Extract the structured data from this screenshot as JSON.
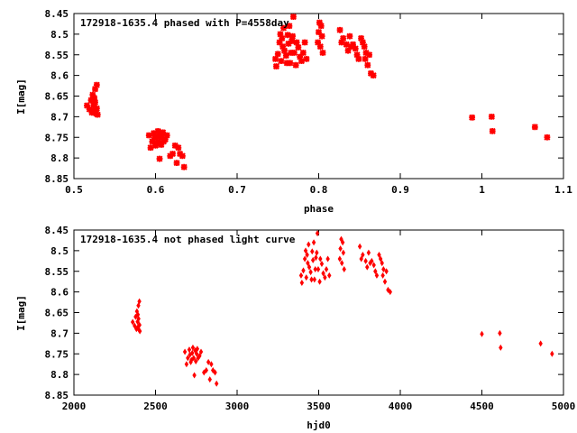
{
  "chart_data": [
    {
      "type": "scatter",
      "title": "172918-1635.4 phased with P=4558day",
      "xlabel": "phase",
      "ylabel": "I[mag]",
      "xlim": [
        0.5,
        1.1
      ],
      "ylim": [
        8.85,
        8.45
      ],
      "y_inverted": true,
      "grid": false,
      "marker_color": "#ff0000",
      "marker": "cross-bold",
      "x_ticks": [
        "0.5",
        "0.6",
        "0.7",
        "0.8",
        "0.9",
        "1",
        "1.1"
      ],
      "y_ticks": [
        "8.45",
        "8.5",
        "8.55",
        "8.6",
        "8.65",
        "8.7",
        "8.75",
        "8.8",
        "8.85"
      ],
      "points": [
        [
          0.516,
          8.673
        ],
        [
          0.519,
          8.682
        ],
        [
          0.521,
          8.66
        ],
        [
          0.522,
          8.69
        ],
        [
          0.523,
          8.647
        ],
        [
          0.524,
          8.672
        ],
        [
          0.525,
          8.655
        ],
        [
          0.525,
          8.685
        ],
        [
          0.526,
          8.633
        ],
        [
          0.526,
          8.665
        ],
        [
          0.527,
          8.692
        ],
        [
          0.528,
          8.623
        ],
        [
          0.528,
          8.68
        ],
        [
          0.529,
          8.695
        ],
        [
          0.592,
          8.745
        ],
        [
          0.594,
          8.775
        ],
        [
          0.596,
          8.76
        ],
        [
          0.598,
          8.74
        ],
        [
          0.599,
          8.752
        ],
        [
          0.6,
          8.77
        ],
        [
          0.601,
          8.765
        ],
        [
          0.602,
          8.748
        ],
        [
          0.603,
          8.735
        ],
        [
          0.604,
          8.76
        ],
        [
          0.605,
          8.802
        ],
        [
          0.606,
          8.742
        ],
        [
          0.607,
          8.768
        ],
        [
          0.608,
          8.75
        ],
        [
          0.609,
          8.738
        ],
        [
          0.61,
          8.76
        ],
        [
          0.612,
          8.755
        ],
        [
          0.614,
          8.745
        ],
        [
          0.618,
          8.795
        ],
        [
          0.621,
          8.79
        ],
        [
          0.624,
          8.77
        ],
        [
          0.626,
          8.812
        ],
        [
          0.628,
          8.775
        ],
        [
          0.63,
          8.79
        ],
        [
          0.633,
          8.795
        ],
        [
          0.635,
          8.822
        ],
        [
          0.747,
          8.56
        ],
        [
          0.748,
          8.578
        ],
        [
          0.75,
          8.548
        ],
        [
          0.752,
          8.52
        ],
        [
          0.753,
          8.5
        ],
        [
          0.754,
          8.565
        ],
        [
          0.755,
          8.51
        ],
        [
          0.756,
          8.53
        ],
        [
          0.757,
          8.485
        ],
        [
          0.758,
          8.54
        ],
        [
          0.76,
          8.552
        ],
        [
          0.761,
          8.57
        ],
        [
          0.762,
          8.502
        ],
        [
          0.763,
          8.523
        ],
        [
          0.764,
          8.48
        ],
        [
          0.765,
          8.57
        ],
        [
          0.766,
          8.545
        ],
        [
          0.767,
          8.517
        ],
        [
          0.768,
          8.505
        ],
        [
          0.769,
          8.458
        ],
        [
          0.77,
          8.545
        ],
        [
          0.772,
          8.575
        ],
        [
          0.773,
          8.52
        ],
        [
          0.775,
          8.532
        ],
        [
          0.777,
          8.555
        ],
        [
          0.779,
          8.565
        ],
        [
          0.781,
          8.545
        ],
        [
          0.783,
          8.52
        ],
        [
          0.785,
          8.56
        ],
        [
          0.799,
          8.52
        ],
        [
          0.8,
          8.495
        ],
        [
          0.801,
          8.472
        ],
        [
          0.802,
          8.53
        ],
        [
          0.803,
          8.48
        ],
        [
          0.804,
          8.505
        ],
        [
          0.805,
          8.545
        ],
        [
          0.826,
          8.49
        ],
        [
          0.828,
          8.52
        ],
        [
          0.83,
          8.51
        ],
        [
          0.834,
          8.525
        ],
        [
          0.836,
          8.54
        ],
        [
          0.838,
          8.505
        ],
        [
          0.84,
          8.53
        ],
        [
          0.842,
          8.525
        ],
        [
          0.845,
          8.535
        ],
        [
          0.847,
          8.55
        ],
        [
          0.849,
          8.56
        ],
        [
          0.852,
          8.51
        ],
        [
          0.854,
          8.52
        ],
        [
          0.856,
          8.53
        ],
        [
          0.857,
          8.56
        ],
        [
          0.858,
          8.545
        ],
        [
          0.86,
          8.575
        ],
        [
          0.862,
          8.55
        ],
        [
          0.864,
          8.595
        ],
        [
          0.867,
          8.6
        ],
        [
          0.988,
          8.702
        ],
        [
          1.012,
          8.7
        ],
        [
          1.013,
          8.735
        ],
        [
          1.065,
          8.725
        ],
        [
          1.08,
          8.75
        ]
      ]
    },
    {
      "type": "scatter",
      "title": "172918-1635.4 not phased light curve",
      "xlabel": "hjd0",
      "ylabel": "I[mag]",
      "xlim": [
        2000,
        5000
      ],
      "ylim": [
        8.85,
        8.45
      ],
      "y_inverted": true,
      "grid": false,
      "marker_color": "#ff0000",
      "marker": "diamond",
      "x_ticks": [
        "2000",
        "2500",
        "3000",
        "3500",
        "4000",
        "4500",
        "5000"
      ],
      "y_ticks": [
        "8.45",
        "8.5",
        "8.55",
        "8.6",
        "8.65",
        "8.7",
        "8.75",
        "8.8",
        "8.85"
      ],
      "points": [
        [
          2360,
          8.673
        ],
        [
          2372,
          8.682
        ],
        [
          2378,
          8.66
        ],
        [
          2383,
          8.69
        ],
        [
          2386,
          8.647
        ],
        [
          2390,
          8.672
        ],
        [
          2392,
          8.655
        ],
        [
          2393,
          8.685
        ],
        [
          2395,
          8.633
        ],
        [
          2396,
          8.665
        ],
        [
          2399,
          8.692
        ],
        [
          2401,
          8.623
        ],
        [
          2402,
          8.68
        ],
        [
          2404,
          8.695
        ],
        [
          2680,
          8.745
        ],
        [
          2690,
          8.775
        ],
        [
          2698,
          8.76
        ],
        [
          2707,
          8.74
        ],
        [
          2711,
          8.752
        ],
        [
          2716,
          8.77
        ],
        [
          2720,
          8.765
        ],
        [
          2725,
          8.748
        ],
        [
          2729,
          8.735
        ],
        [
          2734,
          8.76
        ],
        [
          2738,
          8.802
        ],
        [
          2743,
          8.742
        ],
        [
          2747,
          8.768
        ],
        [
          2752,
          8.75
        ],
        [
          2756,
          8.738
        ],
        [
          2761,
          8.76
        ],
        [
          2770,
          8.755
        ],
        [
          2779,
          8.745
        ],
        [
          2797,
          8.795
        ],
        [
          2811,
          8.79
        ],
        [
          2824,
          8.77
        ],
        [
          2833,
          8.812
        ],
        [
          2842,
          8.775
        ],
        [
          2852,
          8.79
        ],
        [
          2865,
          8.795
        ],
        [
          2874,
          8.822
        ],
        [
          3392,
          8.56
        ],
        [
          3397,
          8.578
        ],
        [
          3406,
          8.548
        ],
        [
          3415,
          8.52
        ],
        [
          3420,
          8.5
        ],
        [
          3424,
          8.565
        ],
        [
          3429,
          8.51
        ],
        [
          3433,
          8.53
        ],
        [
          3438,
          8.485
        ],
        [
          3442,
          8.54
        ],
        [
          3451,
          8.552
        ],
        [
          3456,
          8.57
        ],
        [
          3460,
          8.502
        ],
        [
          3465,
          8.523
        ],
        [
          3470,
          8.48
        ],
        [
          3474,
          8.57
        ],
        [
          3479,
          8.545
        ],
        [
          3483,
          8.517
        ],
        [
          3488,
          8.505
        ],
        [
          3492,
          8.458
        ],
        [
          3497,
          8.545
        ],
        [
          3506,
          8.575
        ],
        [
          3510,
          8.52
        ],
        [
          3519,
          8.532
        ],
        [
          3528,
          8.555
        ],
        [
          3538,
          8.565
        ],
        [
          3547,
          8.545
        ],
        [
          3556,
          8.52
        ],
        [
          3565,
          8.56
        ],
        [
          3629,
          8.52
        ],
        [
          3633,
          8.495
        ],
        [
          3638,
          8.472
        ],
        [
          3642,
          8.53
        ],
        [
          3647,
          8.48
        ],
        [
          3651,
          8.505
        ],
        [
          3656,
          8.545
        ],
        [
          3752,
          8.49
        ],
        [
          3761,
          8.52
        ],
        [
          3770,
          8.51
        ],
        [
          3788,
          8.525
        ],
        [
          3797,
          8.54
        ],
        [
          3806,
          8.505
        ],
        [
          3815,
          8.53
        ],
        [
          3825,
          8.525
        ],
        [
          3838,
          8.535
        ],
        [
          3847,
          8.55
        ],
        [
          3856,
          8.56
        ],
        [
          3870,
          8.51
        ],
        [
          3879,
          8.52
        ],
        [
          3888,
          8.53
        ],
        [
          3893,
          8.56
        ],
        [
          3897,
          8.545
        ],
        [
          3906,
          8.575
        ],
        [
          3915,
          8.55
        ],
        [
          3925,
          8.595
        ],
        [
          3938,
          8.6
        ],
        [
          4500,
          8.702
        ],
        [
          4610,
          8.7
        ],
        [
          4615,
          8.735
        ],
        [
          4860,
          8.725
        ],
        [
          4930,
          8.75
        ]
      ]
    }
  ]
}
